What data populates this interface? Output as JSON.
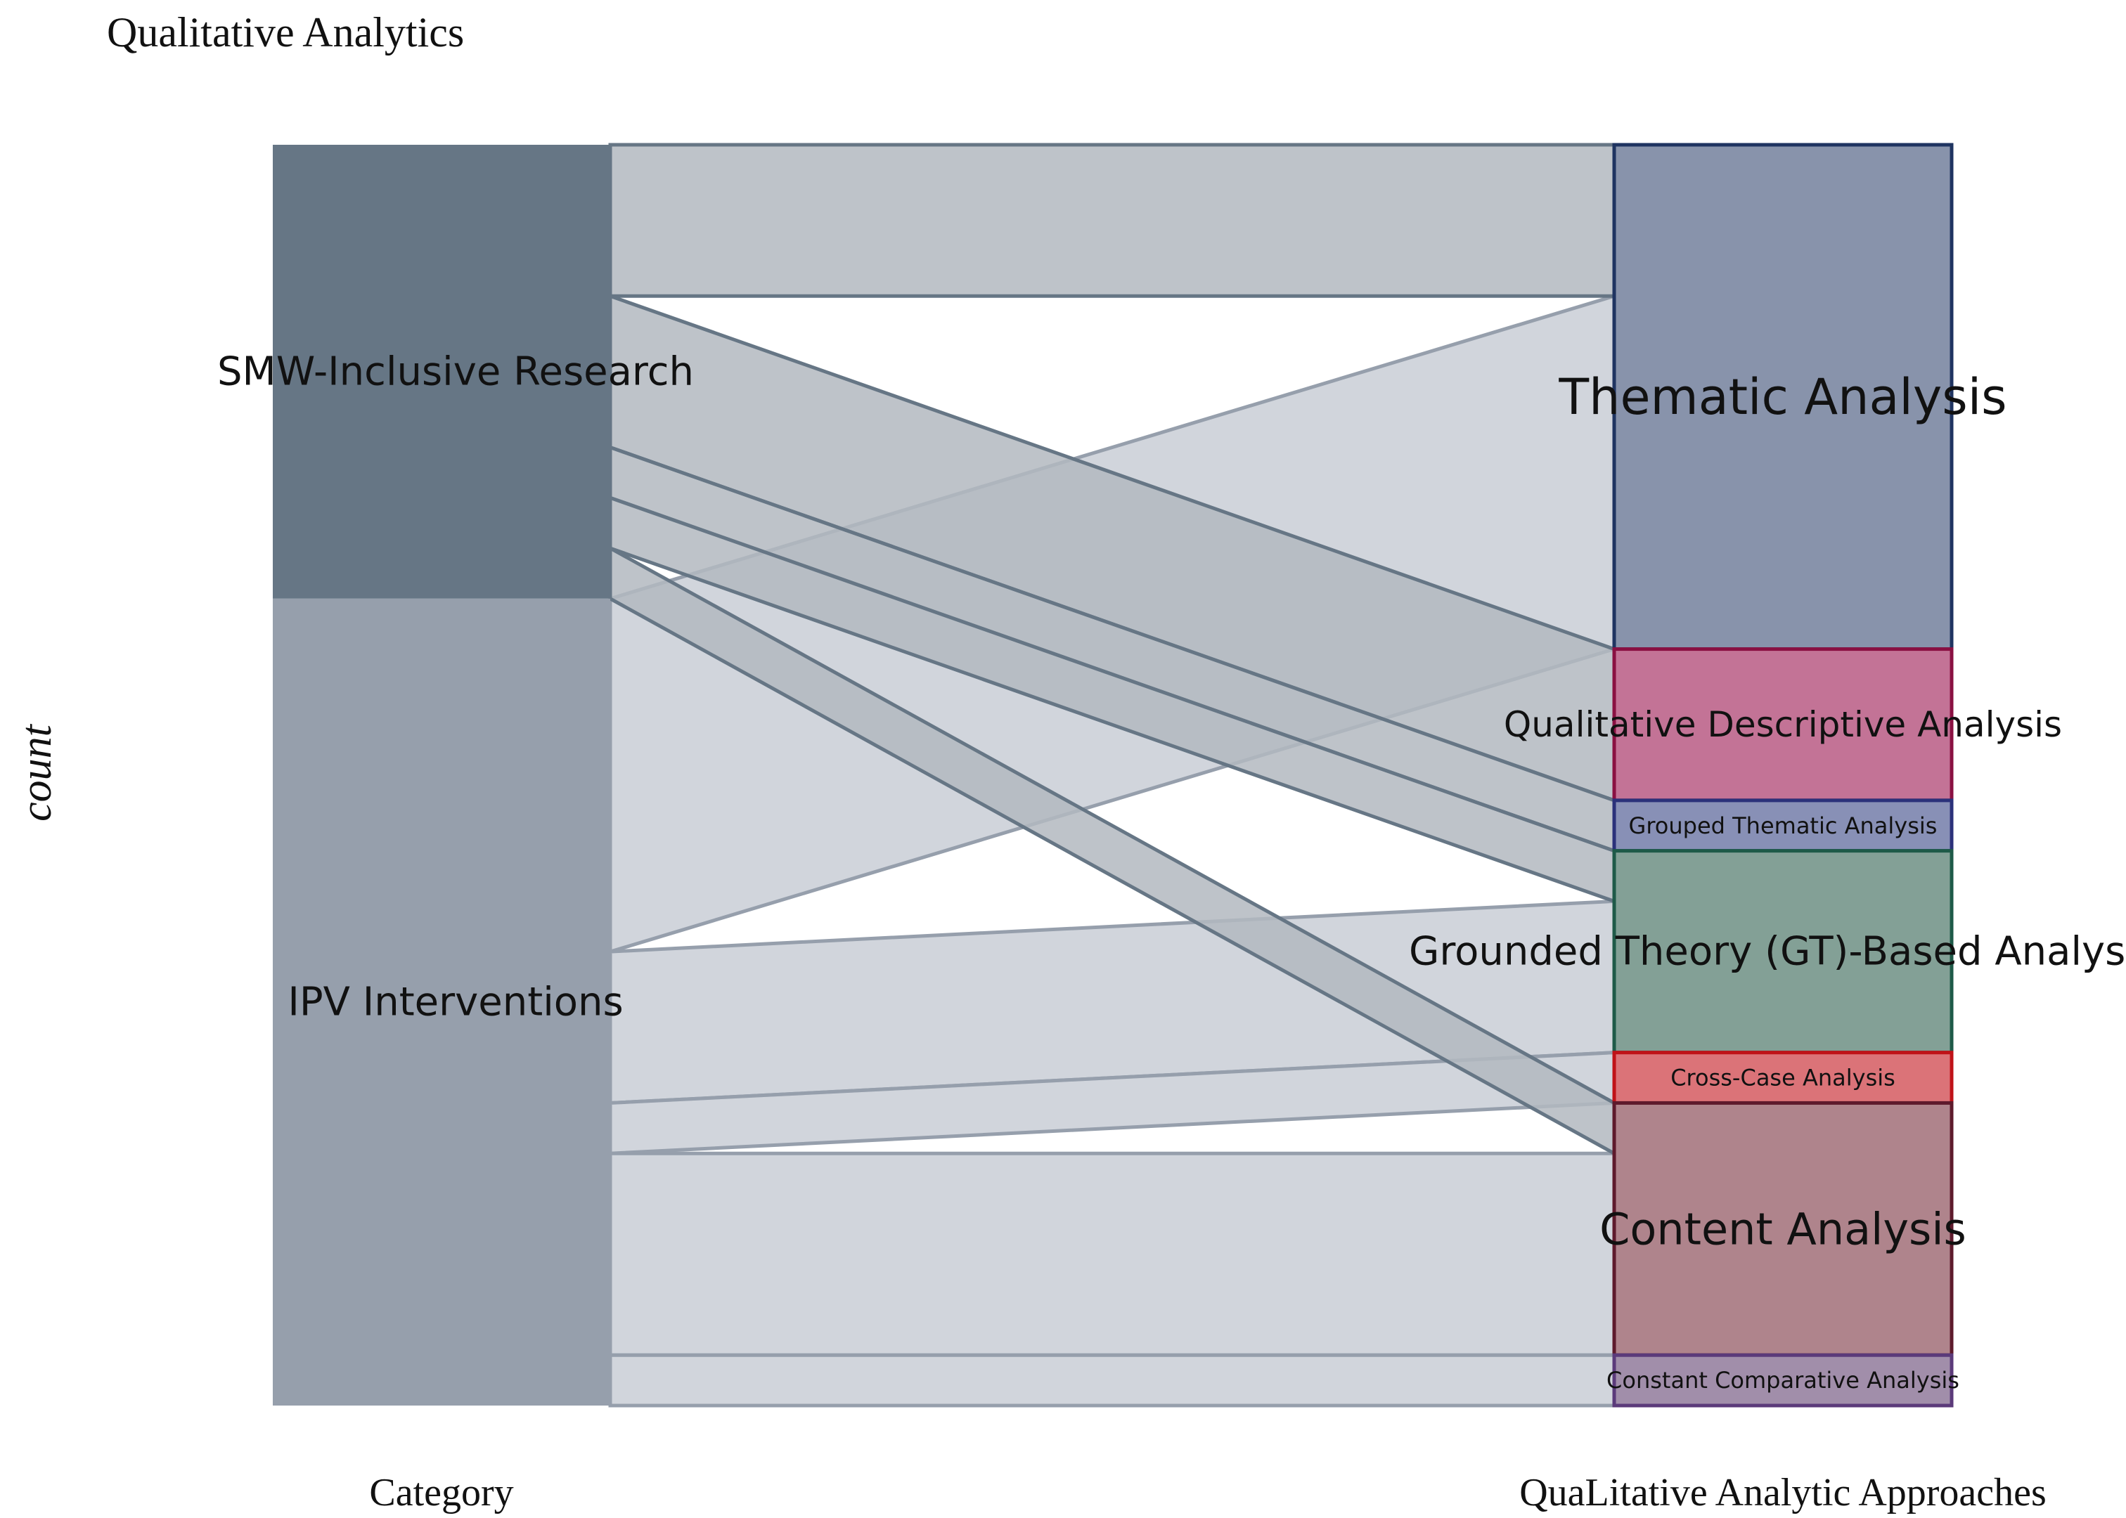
{
  "chart_data": {
    "type": "alluvial",
    "title": "Qualitative Analytics",
    "ylabel": "count",
    "axes": [
      {
        "label": "Category"
      },
      {
        "label": "QuaLitative Analytic Approaches"
      }
    ],
    "left_nodes": [
      {
        "name": "SMW-Inclusive Research",
        "fill": "#667685",
        "flow_fill": "#b3b9c0",
        "flow_stroke": "#667685"
      },
      {
        "name": "IPV Interventions",
        "fill": "#969fac",
        "flow_fill": "#c9ced6",
        "flow_stroke": "#969fac"
      }
    ],
    "right_nodes": [
      {
        "name": "Thematic Analysis",
        "fill": "#8893ab",
        "stroke": "#1f3461"
      },
      {
        "name": "Qualitative Descriptive Analysis",
        "fill": "#c37396",
        "stroke": "#8a1042"
      },
      {
        "name": "Grouped Thematic Analysis",
        "fill": "#8890b6",
        "stroke": "#2b317a"
      },
      {
        "name": "Grounded Theory (GT)-Based Analysis",
        "fill": "#83a096",
        "stroke": "#1e5a48"
      },
      {
        "name": "Cross-Case Analysis",
        "fill": "#db7378",
        "stroke": "#c01218"
      },
      {
        "name": "Content Analysis",
        "fill": "#af848c",
        "stroke": "#5e1a2c"
      },
      {
        "name": "Constant Comparative Analysis",
        "fill": "#a18eaa",
        "stroke": "#5b3a7a"
      }
    ],
    "flows": [
      {
        "source": "SMW-Inclusive Research",
        "target": "Thematic Analysis",
        "value": 3
      },
      {
        "source": "SMW-Inclusive Research",
        "target": "Qualitative Descriptive Analysis",
        "value": 3
      },
      {
        "source": "SMW-Inclusive Research",
        "target": "Grouped Thematic Analysis",
        "value": 1
      },
      {
        "source": "SMW-Inclusive Research",
        "target": "Grounded Theory (GT)-Based Analysis",
        "value": 1
      },
      {
        "source": "SMW-Inclusive Research",
        "target": "Content Analysis",
        "value": 1
      },
      {
        "source": "IPV Interventions",
        "target": "Thematic Analysis",
        "value": 7
      },
      {
        "source": "IPV Interventions",
        "target": "Grounded Theory (GT)-Based Analysis",
        "value": 3
      },
      {
        "source": "IPV Interventions",
        "target": "Cross-Case Analysis",
        "value": 1
      },
      {
        "source": "IPV Interventions",
        "target": "Content Analysis",
        "value": 4
      },
      {
        "source": "IPV Interventions",
        "target": "Constant Comparative Analysis",
        "value": 1
      }
    ],
    "label_sizes": {
      "SMW-Inclusive Research": 56,
      "IPV Interventions": 56,
      "Thematic Analysis": 70,
      "Qualitative Descriptive Analysis": 50,
      "Grouped Thematic Analysis": 32,
      "Grounded Theory (GT)-Based Analysis": 56,
      "Cross-Case Analysis": 32,
      "Content Analysis": 62,
      "Constant Comparative Analysis": 32
    }
  }
}
